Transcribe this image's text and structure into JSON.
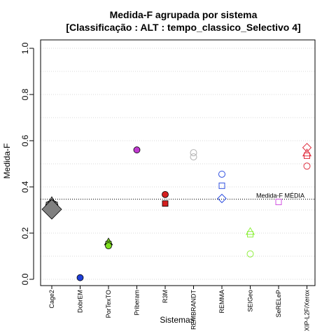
{
  "chart_data": {
    "type": "scatter",
    "title": "Medida-F agrupada por sistema",
    "subtitle": "[Classificação : ALT : tempo_classico_Selectivo 4]",
    "xlabel": "Sistemas",
    "ylabel": "Medida-F",
    "ylim": [
      0,
      1
    ],
    "yticks": [
      "0.0",
      "0.2",
      "0.4",
      "0.6",
      "0.8",
      "1.0"
    ],
    "grid": "horizontal dotted",
    "categories": [
      "Cage2",
      "DobrEM",
      "PorTexTO",
      "Priberam",
      "R3M",
      "REMBRANDT",
      "REMMA",
      "SEIGeo",
      "SeRELeP",
      "XIP-L2F/Xerox"
    ],
    "reference_line": {
      "label": "Medida-F MÉDIA",
      "value": 0.347
    },
    "points": [
      {
        "category": "Cage2",
        "value": 0.33,
        "shape": "triangle",
        "color": "#808080",
        "filled": true,
        "size": 9
      },
      {
        "category": "Cage2",
        "value": 0.315,
        "shape": "circle",
        "color": "#808080",
        "filled": true,
        "size": 10
      },
      {
        "category": "Cage2",
        "value": 0.31,
        "shape": "square",
        "color": "#808080",
        "filled": true,
        "size": 10
      },
      {
        "category": "Cage2",
        "value": 0.303,
        "shape": "diamond",
        "color": "#808080",
        "filled": true,
        "size": 14
      },
      {
        "category": "DobrEM",
        "value": 0.007,
        "shape": "circle",
        "color": "#1f3fd8",
        "filled": true,
        "size": 5
      },
      {
        "category": "PorTexTO",
        "value": 0.16,
        "shape": "triangle",
        "color": "#7fe020",
        "filled": true,
        "size": 6
      },
      {
        "category": "PorTexTO",
        "value": 0.152,
        "shape": "square",
        "color": "#7fe020",
        "filled": true,
        "size": 5
      },
      {
        "category": "PorTexTO",
        "value": 0.145,
        "shape": "circle",
        "color": "#7fe020",
        "filled": true,
        "size": 5
      },
      {
        "category": "Priberam",
        "value": 0.56,
        "shape": "circle",
        "color": "#c03ad0",
        "filled": true,
        "size": 5
      },
      {
        "category": "R3M",
        "value": 0.367,
        "shape": "circle",
        "color": "#d42020",
        "filled": true,
        "size": 5
      },
      {
        "category": "R3M",
        "value": 0.328,
        "shape": "square",
        "color": "#d42020",
        "filled": true,
        "size": 5
      },
      {
        "category": "REMBRANDT",
        "value": 0.548,
        "shape": "circle",
        "color": "#b0b0b0",
        "filled": false,
        "size": 5
      },
      {
        "category": "REMBRANDT",
        "value": 0.53,
        "shape": "circle",
        "color": "#b0b0b0",
        "filled": false,
        "size": 5
      },
      {
        "category": "REMMA",
        "value": 0.455,
        "shape": "circle",
        "color": "#3050e0",
        "filled": false,
        "size": 5
      },
      {
        "category": "REMMA",
        "value": 0.405,
        "shape": "square",
        "color": "#3050e0",
        "filled": false,
        "size": 5
      },
      {
        "category": "REMMA",
        "value": 0.35,
        "shape": "diamond",
        "color": "#3050e0",
        "filled": false,
        "size": 6
      },
      {
        "category": "SEIGeo",
        "value": 0.205,
        "shape": "triangle",
        "color": "#90f040",
        "filled": false,
        "size": 6
      },
      {
        "category": "SEIGeo",
        "value": 0.195,
        "shape": "square",
        "color": "#90f040",
        "filled": false,
        "size": 5
      },
      {
        "category": "SEIGeo",
        "value": 0.11,
        "shape": "circle",
        "color": "#90f040",
        "filled": false,
        "size": 5
      },
      {
        "category": "SeRELeP",
        "value": 0.335,
        "shape": "square",
        "color": "#d050e0",
        "filled": false,
        "size": 5
      },
      {
        "category": "XIP-L2F/Xerox",
        "value": 0.57,
        "shape": "diamond",
        "color": "#e03040",
        "filled": false,
        "size": 6
      },
      {
        "category": "XIP-L2F/Xerox",
        "value": 0.545,
        "shape": "triangle",
        "color": "#e03040",
        "filled": false,
        "size": 6
      },
      {
        "category": "XIP-L2F/Xerox",
        "value": 0.535,
        "shape": "square",
        "color": "#e03040",
        "filled": false,
        "size": 5
      },
      {
        "category": "XIP-L2F/Xerox",
        "value": 0.49,
        "shape": "circle",
        "color": "#e03040",
        "filled": false,
        "size": 5
      }
    ]
  }
}
